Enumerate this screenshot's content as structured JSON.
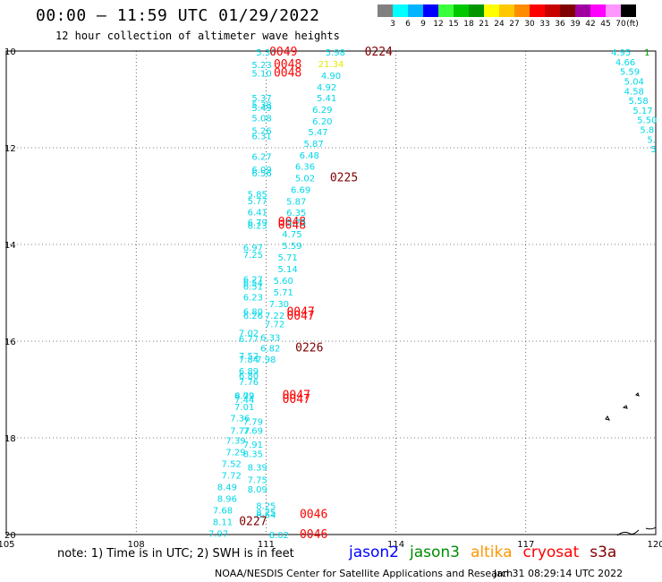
{
  "header": {
    "title": "00:00 — 11:59 UTC 01/29/2022",
    "subtitle": "12 hour collection of altimeter wave heights"
  },
  "legend": {
    "unit": "(ft)",
    "bins": [
      {
        "label": "3",
        "color": "#808080"
      },
      {
        "label": "6",
        "color": "#00ffff"
      },
      {
        "label": "9",
        "color": "#00b4ff"
      },
      {
        "label": "12",
        "color": "#0000ff"
      },
      {
        "label": "15",
        "color": "#3cff3c"
      },
      {
        "label": "18",
        "color": "#00c800"
      },
      {
        "label": "21",
        "color": "#009600"
      },
      {
        "label": "24",
        "color": "#ffff00"
      },
      {
        "label": "27",
        "color": "#ffc800"
      },
      {
        "label": "30",
        "color": "#ff8c00"
      },
      {
        "label": "33",
        "color": "#ff0000"
      },
      {
        "label": "36",
        "color": "#c80000"
      },
      {
        "label": "39",
        "color": "#800000"
      },
      {
        "label": "42",
        "color": "#a000a0"
      },
      {
        "label": "45",
        "color": "#ff00ff"
      },
      {
        "label": "70",
        "color": "#ff96ff"
      },
      {
        "label": "",
        "color": "#000000"
      }
    ]
  },
  "map": {
    "lon_ticks": [
      "105",
      "108",
      "111",
      "114",
      "117",
      "120"
    ],
    "lat_ticks": [
      "10",
      "12",
      "14",
      "16",
      "18",
      "20"
    ],
    "lon_range": [
      105,
      120
    ],
    "lat_range": [
      10,
      20
    ],
    "grid": "dotted"
  },
  "track_colors": {
    "cyan": "#00d8e8",
    "yellow": "#e8e800",
    "red": "#ff0000",
    "darkred": "#800000",
    "green": "#00a000"
  },
  "observations": [
    {
      "text": "5.36",
      "lon": 111.0,
      "lat": 10.02,
      "c": "cyan"
    },
    {
      "text": "0049",
      "lon": 111.4,
      "lat": 10.02,
      "c": "red"
    },
    {
      "text": "5.98",
      "lon": 112.6,
      "lat": 10.02,
      "c": "cyan"
    },
    {
      "text": "0224",
      "lon": 113.6,
      "lat": 10.02,
      "c": "darkred"
    },
    {
      "text": "21.34",
      "lon": 112.5,
      "lat": 10.26,
      "c": "yellow"
    },
    {
      "text": "5.23",
      "lon": 110.9,
      "lat": 10.28,
      "c": "cyan"
    },
    {
      "text": "0048",
      "lon": 111.5,
      "lat": 10.28,
      "c": "red"
    },
    {
      "text": "5.10",
      "lon": 110.9,
      "lat": 10.45,
      "c": "cyan"
    },
    {
      "text": "0048",
      "lon": 111.5,
      "lat": 10.45,
      "c": "red"
    },
    {
      "text": "4.90",
      "lon": 112.5,
      "lat": 10.5,
      "c": "cyan"
    },
    {
      "text": "4.92",
      "lon": 112.4,
      "lat": 10.74,
      "c": "cyan"
    },
    {
      "text": "5.41",
      "lon": 112.4,
      "lat": 10.96,
      "c": "cyan"
    },
    {
      "text": "5.37",
      "lon": 110.9,
      "lat": 10.96,
      "c": "cyan"
    },
    {
      "text": "5.38",
      "lon": 110.9,
      "lat": 11.1,
      "c": "cyan"
    },
    {
      "text": "5.49",
      "lon": 110.9,
      "lat": 11.17,
      "c": "cyan"
    },
    {
      "text": "6.29",
      "lon": 112.3,
      "lat": 11.2,
      "c": "cyan"
    },
    {
      "text": "5.08",
      "lon": 110.9,
      "lat": 11.38,
      "c": "cyan"
    },
    {
      "text": "6.20",
      "lon": 112.3,
      "lat": 11.44,
      "c": "cyan"
    },
    {
      "text": "5.26",
      "lon": 110.9,
      "lat": 11.64,
      "c": "cyan"
    },
    {
      "text": "5.47",
      "lon": 112.2,
      "lat": 11.67,
      "c": "cyan"
    },
    {
      "text": "6.31",
      "lon": 110.9,
      "lat": 11.75,
      "c": "cyan"
    },
    {
      "text": "5.87",
      "lon": 112.1,
      "lat": 11.91,
      "c": "cyan"
    },
    {
      "text": "6.27",
      "lon": 110.9,
      "lat": 12.18,
      "c": "cyan"
    },
    {
      "text": "6.48",
      "lon": 112.0,
      "lat": 12.15,
      "c": "cyan"
    },
    {
      "text": "6.36",
      "lon": 111.9,
      "lat": 12.38,
      "c": "cyan"
    },
    {
      "text": "6.09",
      "lon": 110.9,
      "lat": 12.44,
      "c": "cyan"
    },
    {
      "text": "6.56",
      "lon": 110.9,
      "lat": 12.52,
      "c": "cyan"
    },
    {
      "text": "5.02",
      "lon": 111.9,
      "lat": 12.62,
      "c": "cyan"
    },
    {
      "text": "0225",
      "lon": 112.8,
      "lat": 12.62,
      "c": "darkred"
    },
    {
      "text": "6.69",
      "lon": 111.8,
      "lat": 12.86,
      "c": "cyan"
    },
    {
      "text": "5.85",
      "lon": 110.8,
      "lat": 12.95,
      "c": "cyan"
    },
    {
      "text": "5.77",
      "lon": 110.8,
      "lat": 13.09,
      "c": "cyan"
    },
    {
      "text": "5.87",
      "lon": 111.7,
      "lat": 13.1,
      "c": "cyan"
    },
    {
      "text": "6.41",
      "lon": 110.8,
      "lat": 13.32,
      "c": "cyan"
    },
    {
      "text": "6.35",
      "lon": 111.7,
      "lat": 13.33,
      "c": "cyan"
    },
    {
      "text": "6.79",
      "lon": 110.8,
      "lat": 13.54,
      "c": "cyan"
    },
    {
      "text": "6.23",
      "lon": 110.8,
      "lat": 13.6,
      "c": "cyan"
    },
    {
      "text": "0048",
      "lon": 111.6,
      "lat": 13.54,
      "c": "red"
    },
    {
      "text": "0048",
      "lon": 111.6,
      "lat": 13.6,
      "c": "red"
    },
    {
      "text": "5.75",
      "lon": 111.7,
      "lat": 13.54,
      "c": "cyan"
    },
    {
      "text": "4.75",
      "lon": 111.6,
      "lat": 13.78,
      "c": "cyan"
    },
    {
      "text": "5.59",
      "lon": 111.6,
      "lat": 14.02,
      "c": "cyan"
    },
    {
      "text": "6.97",
      "lon": 110.7,
      "lat": 14.06,
      "c": "cyan"
    },
    {
      "text": "7.25",
      "lon": 110.7,
      "lat": 14.2,
      "c": "cyan"
    },
    {
      "text": "5.71",
      "lon": 111.5,
      "lat": 14.26,
      "c": "cyan"
    },
    {
      "text": "5.14",
      "lon": 111.5,
      "lat": 14.5,
      "c": "cyan"
    },
    {
      "text": "6.27",
      "lon": 110.7,
      "lat": 14.71,
      "c": "cyan"
    },
    {
      "text": "5.60",
      "lon": 111.4,
      "lat": 14.74,
      "c": "cyan"
    },
    {
      "text": "6.54",
      "lon": 110.7,
      "lat": 14.79,
      "c": "cyan"
    },
    {
      "text": "6.51",
      "lon": 110.7,
      "lat": 14.86,
      "c": "cyan"
    },
    {
      "text": "5.71",
      "lon": 111.4,
      "lat": 14.98,
      "c": "cyan"
    },
    {
      "text": "6.23",
      "lon": 110.7,
      "lat": 15.08,
      "c": "cyan"
    },
    {
      "text": "7.30",
      "lon": 111.3,
      "lat": 15.22,
      "c": "cyan"
    },
    {
      "text": "6.80",
      "lon": 110.7,
      "lat": 15.38,
      "c": "cyan"
    },
    {
      "text": "0047",
      "lon": 111.8,
      "lat": 15.4,
      "c": "red"
    },
    {
      "text": "6.26",
      "lon": 110.7,
      "lat": 15.46,
      "c": "cyan"
    },
    {
      "text": "7.22",
      "lon": 111.2,
      "lat": 15.46,
      "c": "cyan"
    },
    {
      "text": "0047",
      "lon": 111.8,
      "lat": 15.48,
      "c": "red"
    },
    {
      "text": "7.72",
      "lon": 111.2,
      "lat": 15.64,
      "c": "cyan"
    },
    {
      "text": "7.02",
      "lon": 110.6,
      "lat": 15.82,
      "c": "cyan"
    },
    {
      "text": "6.33",
      "lon": 111.1,
      "lat": 15.92,
      "c": "cyan"
    },
    {
      "text": "6.77",
      "lon": 110.6,
      "lat": 15.94,
      "c": "cyan"
    },
    {
      "text": "6.82",
      "lon": 111.1,
      "lat": 16.14,
      "c": "cyan"
    },
    {
      "text": "0226",
      "lon": 112.0,
      "lat": 16.14,
      "c": "darkred"
    },
    {
      "text": "7.52",
      "lon": 110.6,
      "lat": 16.3,
      "c": "cyan"
    },
    {
      "text": "7.84",
      "lon": 110.6,
      "lat": 16.37,
      "c": "cyan"
    },
    {
      "text": "7.98",
      "lon": 111.0,
      "lat": 16.37,
      "c": "cyan"
    },
    {
      "text": "6.89",
      "lon": 110.6,
      "lat": 16.61,
      "c": "cyan"
    },
    {
      "text": "6.80",
      "lon": 110.6,
      "lat": 16.7,
      "c": "cyan"
    },
    {
      "text": "7.76",
      "lon": 110.6,
      "lat": 16.83,
      "c": "cyan"
    },
    {
      "text": "6.72",
      "lon": 110.5,
      "lat": 17.12,
      "c": "cyan"
    },
    {
      "text": "8.09",
      "lon": 110.5,
      "lat": 17.12,
      "c": "cyan"
    },
    {
      "text": "0047",
      "lon": 111.7,
      "lat": 17.12,
      "c": "red"
    },
    {
      "text": "7.44",
      "lon": 110.5,
      "lat": 17.2,
      "c": "cyan"
    },
    {
      "text": "0047",
      "lon": 111.7,
      "lat": 17.2,
      "c": "red"
    },
    {
      "text": "7.01",
      "lon": 110.5,
      "lat": 17.35,
      "c": "cyan"
    },
    {
      "text": "7.36",
      "lon": 110.4,
      "lat": 17.58,
      "c": "cyan"
    },
    {
      "text": "7.79",
      "lon": 110.7,
      "lat": 17.66,
      "c": "cyan"
    },
    {
      "text": "7.77",
      "lon": 110.4,
      "lat": 17.84,
      "c": "cyan"
    },
    {
      "text": "7.69",
      "lon": 110.7,
      "lat": 17.84,
      "c": "cyan"
    },
    {
      "text": "7.39",
      "lon": 110.3,
      "lat": 18.05,
      "c": "cyan"
    },
    {
      "text": "7.91",
      "lon": 110.7,
      "lat": 18.13,
      "c": "cyan"
    },
    {
      "text": "7.29",
      "lon": 110.3,
      "lat": 18.29,
      "c": "cyan"
    },
    {
      "text": "8.35",
      "lon": 110.7,
      "lat": 18.32,
      "c": "cyan"
    },
    {
      "text": "7.52",
      "lon": 110.2,
      "lat": 18.53,
      "c": "cyan"
    },
    {
      "text": "8.39",
      "lon": 110.8,
      "lat": 18.6,
      "c": "cyan"
    },
    {
      "text": "7.72",
      "lon": 110.2,
      "lat": 18.77,
      "c": "cyan"
    },
    {
      "text": "7.75",
      "lon": 110.8,
      "lat": 18.86,
      "c": "cyan"
    },
    {
      "text": "8.49",
      "lon": 110.1,
      "lat": 19.01,
      "c": "cyan"
    },
    {
      "text": "8.09",
      "lon": 110.8,
      "lat": 19.06,
      "c": "cyan"
    },
    {
      "text": "8.96",
      "lon": 110.1,
      "lat": 19.25,
      "c": "cyan"
    },
    {
      "text": "8.25",
      "lon": 111.0,
      "lat": 19.4,
      "c": "cyan"
    },
    {
      "text": "7.68",
      "lon": 110.0,
      "lat": 19.49,
      "c": "cyan"
    },
    {
      "text": "8.25",
      "lon": 111.0,
      "lat": 19.54,
      "c": "cyan"
    },
    {
      "text": "8.54",
      "lon": 111.0,
      "lat": 19.58,
      "c": "cyan"
    },
    {
      "text": "0046",
      "lon": 112.1,
      "lat": 19.58,
      "c": "red"
    },
    {
      "text": "8.11",
      "lon": 110.0,
      "lat": 19.73,
      "c": "cyan"
    },
    {
      "text": "0227",
      "lon": 110.7,
      "lat": 19.73,
      "c": "darkred"
    },
    {
      "text": "7.97",
      "lon": 109.9,
      "lat": 19.97,
      "c": "cyan"
    },
    {
      "text": "8.02",
      "lon": 111.3,
      "lat": 20.0,
      "c": "cyan"
    },
    {
      "text": "0046",
      "lon": 112.1,
      "lat": 20.0,
      "c": "red"
    },
    {
      "text": "4.95",
      "lon": 119.2,
      "lat": 10.02,
      "c": "cyan"
    },
    {
      "text": "1",
      "lon": 119.8,
      "lat": 10.02,
      "c": "green"
    },
    {
      "text": "4.66",
      "lon": 119.3,
      "lat": 10.22,
      "c": "cyan"
    },
    {
      "text": "5.59",
      "lon": 119.4,
      "lat": 10.42,
      "c": "cyan"
    },
    {
      "text": "5.04",
      "lon": 119.5,
      "lat": 10.62,
      "c": "cyan"
    },
    {
      "text": "4.58",
      "lon": 119.5,
      "lat": 10.82,
      "c": "cyan"
    },
    {
      "text": "5.58",
      "lon": 119.6,
      "lat": 11.02,
      "c": "cyan"
    },
    {
      "text": "5.17",
      "lon": 119.7,
      "lat": 11.22,
      "c": "cyan"
    },
    {
      "text": "5.50",
      "lon": 119.8,
      "lat": 11.42,
      "c": "cyan"
    },
    {
      "text": "5.8",
      "lon": 119.8,
      "lat": 11.62,
      "c": "cyan"
    },
    {
      "text": "5.",
      "lon": 119.9,
      "lat": 11.82,
      "c": "cyan"
    },
    {
      "text": "5",
      "lon": 119.95,
      "lat": 12.02,
      "c": "cyan"
    }
  ],
  "note": "note: 1) Time is in UTC; 2) SWH is in feet",
  "missions": [
    {
      "name": "jason2",
      "color": "#0000ff"
    },
    {
      "name": "jason3",
      "color": "#008c00"
    },
    {
      "name": "altika",
      "color": "#ff9600"
    },
    {
      "name": "cryosat",
      "color": "#ff0000"
    },
    {
      "name": "s3a",
      "color": "#800000"
    }
  ],
  "footer": {
    "credit": "NOAA/NESDIS Center for Satellite Applications and Research",
    "timestamp": "Jan 31 08:29:14 UTC 2022"
  }
}
